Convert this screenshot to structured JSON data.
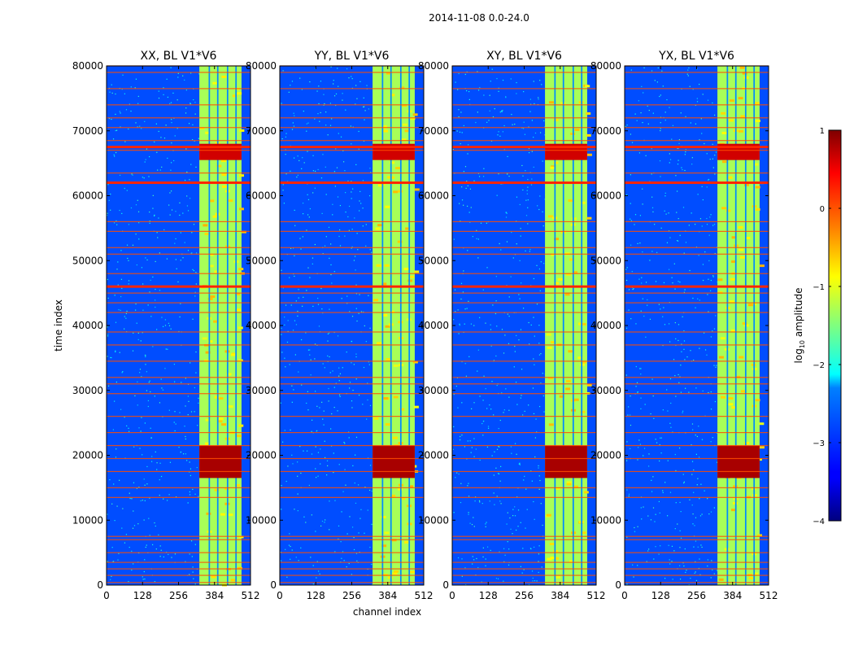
{
  "figure": {
    "suptitle": "2014-11-08 0.0-24.0",
    "xlabel": "channel index",
    "ylabel": "time index"
  },
  "colorbar": {
    "label": "log10 amplitude",
    "label_base": "log",
    "label_sub": "10",
    "label_rest": " amplitude",
    "range": [
      -4,
      1
    ],
    "ticks": [
      1,
      0,
      -1,
      -2,
      -3,
      -4
    ],
    "tick_labels": [
      "1",
      "0",
      "−1",
      "−2",
      "−3",
      "−4"
    ],
    "colormap": "jet"
  },
  "chart_data": [
    {
      "type": "heatmap",
      "title": "XX, BL V1*V6",
      "xlim": [
        0,
        512
      ],
      "ylim": [
        0,
        80000
      ],
      "xticks": [
        0,
        128,
        256,
        384,
        512
      ],
      "yticks": [
        0,
        10000,
        20000,
        30000,
        40000,
        50000,
        60000,
        70000,
        80000
      ],
      "background_log10_amplitude": -3.0,
      "band_channels": [
        330,
        480
      ],
      "band_log10_amplitude": -1.3,
      "band_gap_channels": [
        363,
        368,
        393,
        398,
        428,
        433,
        458,
        463
      ],
      "rfi_rows_time_index": [
        400,
        1500,
        2500,
        3500,
        5000,
        7000,
        7500,
        13500,
        15000,
        17500,
        19500,
        21500,
        23500,
        26000,
        29500,
        31000,
        32000,
        34500,
        37000,
        39000,
        42000,
        43500,
        45000,
        46000,
        48000,
        51000,
        52000,
        54500,
        56000,
        62000,
        63500,
        67000,
        68500,
        70500,
        72000,
        74000,
        76500,
        79000,
        80000
      ],
      "strong_rfi_rows_time_index": [
        46000,
        62000,
        67500
      ],
      "hot_region": {
        "time_index": [
          16500,
          21500
        ],
        "channels": [
          330,
          480
        ],
        "log10_amplitude": 0.8
      },
      "hot_region_2": {
        "time_index": [
          65500,
          68000
        ],
        "channels": [
          330,
          480
        ],
        "log10_amplitude": 0.6
      }
    },
    {
      "type": "heatmap",
      "title": "YY, BL V1*V6",
      "xlim": [
        0,
        512
      ],
      "ylim": [
        0,
        80000
      ],
      "xticks": [
        0,
        128,
        256,
        384,
        512
      ],
      "yticks": [
        0,
        10000,
        20000,
        30000,
        40000,
        50000,
        60000,
        70000,
        80000
      ],
      "background_log10_amplitude": -3.0,
      "band_channels": [
        330,
        480
      ],
      "band_log10_amplitude": -1.3,
      "band_gap_channels": [
        363,
        368,
        393,
        398,
        428,
        433,
        458,
        463
      ],
      "rfi_rows_time_index": [
        400,
        1500,
        2500,
        3500,
        5000,
        7000,
        7500,
        13500,
        15000,
        17500,
        19500,
        21500,
        23500,
        26000,
        29500,
        31000,
        32000,
        34500,
        37000,
        39000,
        42000,
        43500,
        45000,
        46000,
        48000,
        51000,
        52000,
        54500,
        56000,
        62000,
        63500,
        67000,
        68500,
        70500,
        72000,
        74000,
        76500,
        79000,
        80000
      ],
      "strong_rfi_rows_time_index": [
        46000,
        62000,
        67500
      ],
      "hot_region": {
        "time_index": [
          16500,
          21500
        ],
        "channels": [
          330,
          480
        ],
        "log10_amplitude": 0.8
      },
      "hot_region_2": {
        "time_index": [
          65500,
          68000
        ],
        "channels": [
          330,
          480
        ],
        "log10_amplitude": 0.6
      }
    },
    {
      "type": "heatmap",
      "title": "XY, BL V1*V6",
      "xlim": [
        0,
        512
      ],
      "ylim": [
        0,
        80000
      ],
      "xticks": [
        0,
        128,
        256,
        384,
        512
      ],
      "yticks": [
        0,
        10000,
        20000,
        30000,
        40000,
        50000,
        60000,
        70000,
        80000
      ],
      "background_log10_amplitude": -3.0,
      "band_channels": [
        330,
        480
      ],
      "band_log10_amplitude": -1.3,
      "band_gap_channels": [
        363,
        368,
        393,
        398,
        428,
        433,
        458,
        463
      ],
      "rfi_rows_time_index": [
        400,
        1500,
        2500,
        3500,
        5000,
        7000,
        7500,
        13500,
        15000,
        17500,
        19500,
        21500,
        23500,
        26000,
        29500,
        31000,
        32000,
        34500,
        37000,
        39000,
        42000,
        43500,
        45000,
        46000,
        48000,
        51000,
        52000,
        54500,
        56000,
        62000,
        63500,
        67000,
        68500,
        70500,
        72000,
        74000,
        76500,
        79000,
        80000
      ],
      "strong_rfi_rows_time_index": [
        46000,
        62000,
        67500
      ],
      "hot_region": {
        "time_index": [
          16500,
          21500
        ],
        "channels": [
          330,
          480
        ],
        "log10_amplitude": 0.8
      },
      "hot_region_2": {
        "time_index": [
          65500,
          68000
        ],
        "channels": [
          330,
          480
        ],
        "log10_amplitude": 0.6
      }
    },
    {
      "type": "heatmap",
      "title": "YX, BL V1*V6",
      "xlim": [
        0,
        512
      ],
      "ylim": [
        0,
        80000
      ],
      "xticks": [
        0,
        128,
        256,
        384,
        512
      ],
      "yticks": [
        0,
        10000,
        20000,
        30000,
        40000,
        50000,
        60000,
        70000,
        80000
      ],
      "background_log10_amplitude": -3.0,
      "band_channels": [
        330,
        480
      ],
      "band_log10_amplitude": -1.3,
      "band_gap_channels": [
        363,
        368,
        393,
        398,
        428,
        433,
        458,
        463
      ],
      "rfi_rows_time_index": [
        400,
        1500,
        2500,
        3500,
        5000,
        7000,
        7500,
        13500,
        15000,
        17500,
        19500,
        21500,
        23500,
        26000,
        29500,
        31000,
        32000,
        34500,
        37000,
        39000,
        42000,
        43500,
        45000,
        46000,
        48000,
        51000,
        52000,
        54500,
        56000,
        62000,
        63500,
        67000,
        68500,
        70500,
        72000,
        74000,
        76500,
        79000,
        80000
      ],
      "strong_rfi_rows_time_index": [
        46000,
        62000,
        67500
      ],
      "hot_region": {
        "time_index": [
          16500,
          21500
        ],
        "channels": [
          330,
          480
        ],
        "log10_amplitude": 0.8
      },
      "hot_region_2": {
        "time_index": [
          65500,
          68000
        ],
        "channels": [
          330,
          480
        ],
        "log10_amplitude": 0.6
      }
    }
  ]
}
